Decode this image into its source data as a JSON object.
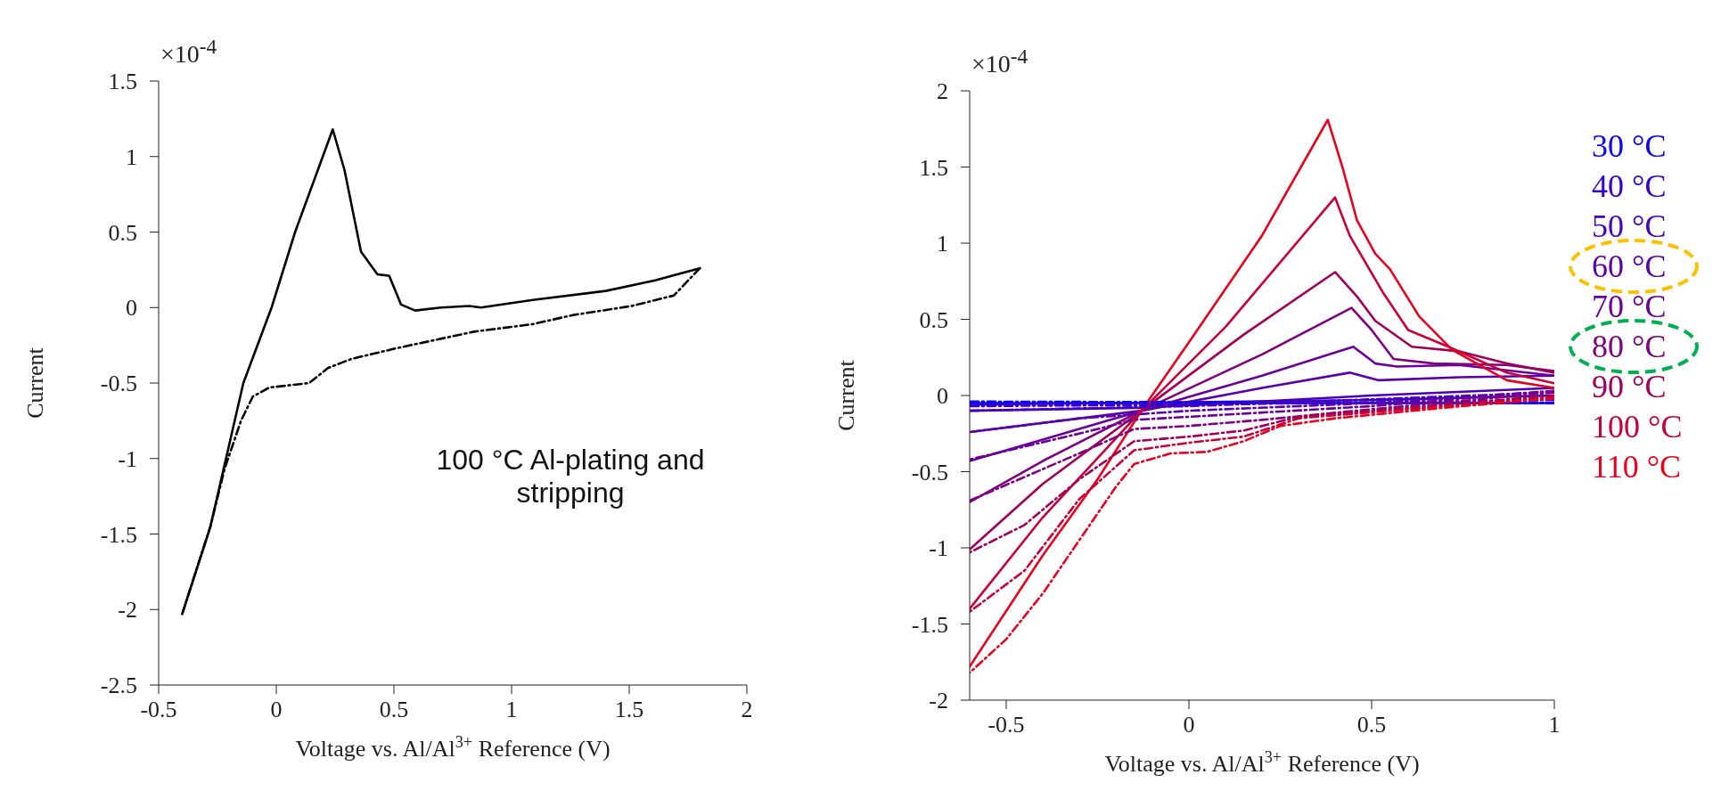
{
  "chart_data": [
    {
      "type": "line",
      "xlabel": "Voltage vs. Al/Al$^{3+}$ Reference (V)",
      "ylabel": "Current",
      "annotations": [
        "×10$^{-4}$",
        "100 °C Al-plating and stripping"
      ],
      "xlim": [
        -0.5,
        2
      ],
      "xticks": [
        -0.5,
        0,
        0.5,
        1,
        1.5,
        2
      ],
      "ylim": [
        -2.5,
        1.5
      ],
      "yticks": [
        -2.5,
        -2,
        -1.5,
        -1,
        -0.5,
        0,
        0.5,
        1,
        1.5
      ],
      "grid": false,
      "legend": false,
      "series": [
        {
          "color": "#000000",
          "line_style": "solid",
          "x": [
            -0.4,
            -0.28,
            -0.14,
            -0.02,
            0.08,
            0.24,
            0.29,
            0.36,
            0.43,
            0.48,
            0.53,
            0.59,
            0.7,
            0.82,
            0.87,
            1.09,
            1.4,
            1.61,
            1.8
          ],
          "values": [
            -2.03,
            -1.45,
            -0.5,
            0,
            0.5,
            1.18,
            0.91,
            0.37,
            0.22,
            0.21,
            0.02,
            -0.02,
            0,
            0.01,
            0,
            0.05,
            0.11,
            0.18,
            0.26
          ]
        },
        {
          "color": "#000000",
          "line_style": "dashed",
          "x": [
            1.8,
            1.69,
            1.51,
            1.26,
            1.09,
            0.84,
            0.51,
            0.32,
            0.22,
            0.14,
            -0.03,
            -0.1,
            -0.15,
            -0.22,
            -0.28,
            -0.4
          ],
          "values": [
            0.26,
            0.08,
            0.01,
            -0.05,
            -0.11,
            -0.16,
            -0.27,
            -0.34,
            -0.4,
            -0.5,
            -0.53,
            -0.59,
            -0.75,
            -1.07,
            -1.45,
            -2.03
          ]
        }
      ]
    },
    {
      "type": "line",
      "xlabel": "Voltage vs. Al/Al$^{3+}$ Reference (V)",
      "ylabel": "Current",
      "annotations": [
        "×10$^{-4}$"
      ],
      "xlim": [
        -0.6,
        1
      ],
      "xticks": [
        -0.5,
        0,
        0.5,
        1
      ],
      "ylim": [
        -2,
        2
      ],
      "yticks": [
        -2,
        -1.5,
        -1,
        -0.5,
        0,
        0.5,
        1,
        1.5,
        2
      ],
      "grid": false,
      "legend": "right",
      "series": [
        {
          "name": "30 °C",
          "color": "#0a00f5",
          "line_style": "solid",
          "x": [
            -0.6,
            0.3,
            1
          ],
          "values": [
            -0.05,
            -0.05,
            -0.05
          ]
        },
        {
          "name": "40 °C",
          "color": "#3300d0",
          "line_style": "solid",
          "x": [
            -0.6,
            0.5,
            1
          ],
          "values": [
            -0.06,
            -0.03,
            0
          ]
        },
        {
          "name": "50 °C",
          "color": "#4800bd",
          "line_style": "solid",
          "x": [
            -0.6,
            -0.13,
            0.5,
            1
          ],
          "values": [
            -0.1,
            -0.08,
            0,
            0.05
          ]
        },
        {
          "name": "60 °C",
          "color": "#5a00ab",
          "line_style": "solid",
          "x": [
            -0.6,
            -0.13,
            0.2,
            0.44,
            0.52,
            0.74,
            1
          ],
          "values": [
            -0.24,
            -0.1,
            0.05,
            0.15,
            0.1,
            0.12,
            0.13
          ]
        },
        {
          "name": "70 °C",
          "color": "#6a009a",
          "line_style": "solid",
          "x": [
            -0.6,
            -0.13,
            0.2,
            0.45,
            0.51,
            0.57,
            0.74,
            1
          ],
          "values": [
            -0.43,
            -0.1,
            0.13,
            0.32,
            0.21,
            0.19,
            0.2,
            0.13
          ]
        },
        {
          "name": "80 °C",
          "color": "#7f0080",
          "line_style": "solid",
          "x": [
            -0.6,
            -0.4,
            -0.13,
            0.2,
            0.445,
            0.5,
            0.56,
            0.67,
            0.87,
            1
          ],
          "values": [
            -0.7,
            -0.43,
            -0.1,
            0.27,
            0.575,
            0.43,
            0.24,
            0.21,
            0.2,
            0.16
          ]
        },
        {
          "name": "90 °C",
          "color": "#a0005c",
          "line_style": "solid",
          "x": [
            -0.6,
            -0.4,
            -0.13,
            0.15,
            0.4,
            0.46,
            0.51,
            0.61,
            0.74,
            0.87,
            1
          ],
          "values": [
            -1.01,
            -0.58,
            -0.1,
            0.4,
            0.81,
            0.65,
            0.49,
            0.32,
            0.29,
            0.21,
            0.15
          ]
        },
        {
          "name": "100 °C",
          "color": "#c8003a",
          "line_style": "solid",
          "x": [
            -0.6,
            -0.4,
            -0.13,
            0.1,
            0.4,
            0.44,
            0.53,
            0.6,
            0.71,
            0.87,
            1
          ],
          "values": [
            -1.4,
            -0.8,
            -0.1,
            0.45,
            1.3,
            1.05,
            0.68,
            0.43,
            0.32,
            0.15,
            0.08
          ]
        },
        {
          "name": "110 °C",
          "color": "#e8001c",
          "line_style": "solid",
          "x": [
            -0.6,
            -0.4,
            -0.25,
            -0.13,
            0,
            0.2,
            0.38,
            0.42,
            0.46,
            0.51,
            0.55,
            0.63,
            0.72,
            0.87,
            1
          ],
          "values": [
            -1.78,
            -1.05,
            -0.55,
            -0.1,
            0.35,
            1.05,
            1.81,
            1.5,
            1.15,
            0.93,
            0.83,
            0.52,
            0.3,
            0.1,
            0.05
          ]
        },
        {
          "color": "#0a00f5",
          "line_style": "dashed",
          "x": [
            1,
            -0.6
          ],
          "values": [
            -0.05,
            -0.04
          ]
        },
        {
          "color": "#3300d0",
          "line_style": "dashed",
          "x": [
            1,
            0,
            -0.6
          ],
          "values": [
            -0.03,
            -0.06,
            -0.07
          ]
        },
        {
          "color": "#4800bd",
          "line_style": "dashed",
          "x": [
            1,
            0,
            -0.6
          ],
          "values": [
            0.02,
            -0.07,
            -0.1
          ]
        },
        {
          "color": "#5a00ab",
          "line_style": "dashed",
          "x": [
            1,
            0.5,
            0,
            -0.3,
            -0.6
          ],
          "values": [
            0.03,
            -0.05,
            -0.1,
            -0.15,
            -0.24
          ]
        },
        {
          "color": "#6a009a",
          "line_style": "dashed",
          "x": [
            1,
            0.5,
            0,
            -0.15,
            -0.3,
            -0.6
          ],
          "values": [
            0.03,
            -0.07,
            -0.14,
            -0.16,
            -0.25,
            -0.42
          ]
        },
        {
          "color": "#7f0080",
          "line_style": "dashed",
          "x": [
            1,
            0.5,
            0.2,
            0,
            -0.15,
            -0.3,
            -0.6
          ],
          "values": [
            0.02,
            -0.09,
            -0.16,
            -0.2,
            -0.22,
            -0.38,
            -0.69
          ]
        },
        {
          "color": "#a0005c",
          "line_style": "dashed",
          "x": [
            1,
            0.6,
            0.3,
            0.15,
            0,
            -0.15,
            -0.3,
            -0.45,
            -0.6
          ],
          "values": [
            0,
            -0.08,
            -0.14,
            -0.23,
            -0.27,
            -0.3,
            -0.55,
            -0.85,
            -1.03
          ]
        },
        {
          "color": "#c8003a",
          "line_style": "dashed",
          "x": [
            1,
            0.6,
            0.3,
            0.15,
            0,
            -0.15,
            -0.3,
            -0.45,
            -0.6
          ],
          "values": [
            -0.01,
            -0.09,
            -0.15,
            -0.27,
            -0.31,
            -0.36,
            -0.68,
            -1.15,
            -1.42
          ]
        },
        {
          "color": "#e8001c",
          "line_style": "dashed",
          "x": [
            1,
            0.7,
            0.4,
            0.25,
            0.15,
            0.05,
            -0.05,
            -0.15,
            -0.2,
            -0.3,
            -0.4,
            -0.5,
            -0.6
          ],
          "values": [
            -0.02,
            -0.08,
            -0.15,
            -0.2,
            -0.3,
            -0.37,
            -0.38,
            -0.45,
            -0.6,
            -0.95,
            -1.3,
            -1.6,
            -1.82
          ]
        }
      ]
    }
  ]
}
